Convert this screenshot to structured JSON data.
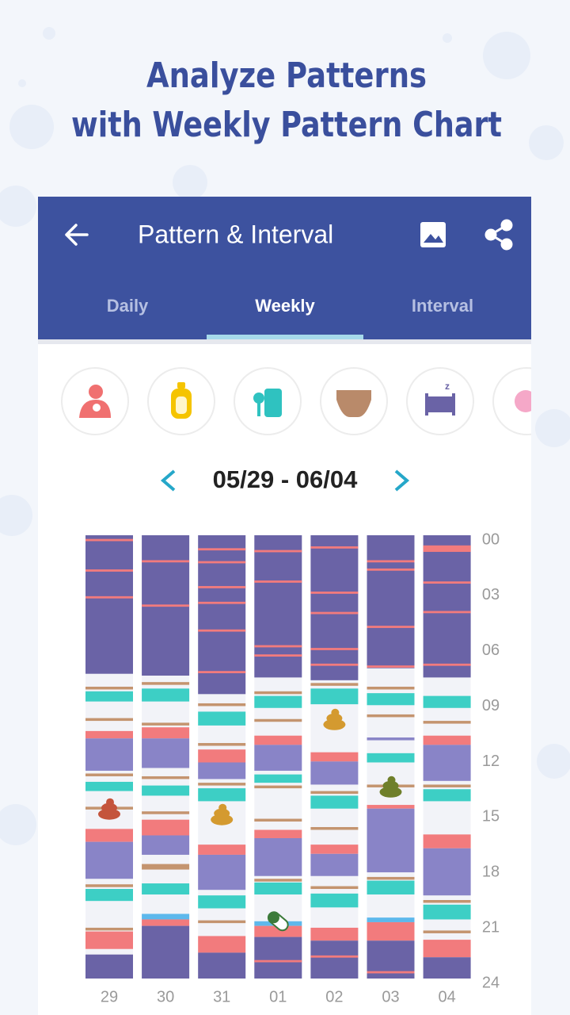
{
  "header": {
    "title_lines": [
      "Analyze Patterns",
      "with Weekly Pattern Chart"
    ]
  },
  "app_bar": {
    "title": "Pattern & Interval",
    "tabs": [
      "Daily",
      "Weekly",
      "Interval"
    ],
    "active_tab": 1
  },
  "date_range": "05/29 - 06/04",
  "chart": {
    "ylim": [
      0,
      24
    ],
    "hour_ticks": [
      {
        "value": 0,
        "label": "00"
      },
      {
        "value": 3,
        "label": "03"
      },
      {
        "value": 6,
        "label": "06"
      },
      {
        "value": 9,
        "label": "09"
      },
      {
        "value": 12,
        "label": "12"
      },
      {
        "value": 15,
        "label": "15"
      },
      {
        "value": 18,
        "label": "18"
      },
      {
        "value": 21,
        "label": "21"
      },
      {
        "value": 24,
        "label": "24"
      }
    ],
    "days": [
      {
        "label": "29",
        "poop": [
          [
            14.8,
            "#c4543c"
          ]
        ],
        "segments": [
          [
            0,
            7.5,
            "#6a63a6"
          ],
          [
            0.2,
            0.32,
            "#f27b7d"
          ],
          [
            1.85,
            1.97,
            "#f27b7d"
          ],
          [
            3.3,
            3.42,
            "#f27b7d"
          ],
          [
            8.2,
            8.35,
            "#c4946f"
          ],
          [
            8.45,
            9.0,
            "#3dcfc5"
          ],
          [
            9.9,
            10.05,
            "#c4946f"
          ],
          [
            10.6,
            11.0,
            "#f27b7d"
          ],
          [
            11.0,
            12.75,
            "#8984c7"
          ],
          [
            12.9,
            13.05,
            "#c4946f"
          ],
          [
            13.35,
            13.85,
            "#3dcfc5"
          ],
          [
            14.7,
            14.85,
            "#c4946f"
          ],
          [
            15.9,
            16.6,
            "#f27b7d"
          ],
          [
            16.6,
            18.6,
            "#8984c7"
          ],
          [
            18.9,
            19.05,
            "#c4946f"
          ],
          [
            19.15,
            19.8,
            "#3dcfc5"
          ],
          [
            21.25,
            21.4,
            "#c4946f"
          ],
          [
            21.45,
            22.4,
            "#f27b7d"
          ],
          [
            22.7,
            24,
            "#6a63a6"
          ]
        ]
      },
      {
        "label": "30",
        "poop": [],
        "segments": [
          [
            0,
            7.6,
            "#6a63a6"
          ],
          [
            1.35,
            1.47,
            "#f27b7d"
          ],
          [
            3.75,
            3.87,
            "#f27b7d"
          ],
          [
            7.95,
            8.1,
            "#c4946f"
          ],
          [
            8.3,
            9.0,
            "#3dcfc5"
          ],
          [
            10.15,
            10.3,
            "#c4946f"
          ],
          [
            10.4,
            11.0,
            "#f27b7d"
          ],
          [
            11.0,
            12.6,
            "#8984c7"
          ],
          [
            13.05,
            13.2,
            "#c4946f"
          ],
          [
            13.55,
            14.1,
            "#3dcfc5"
          ],
          [
            14.95,
            15.1,
            "#c4946f"
          ],
          [
            15.4,
            16.25,
            "#f27b7d"
          ],
          [
            16.25,
            17.3,
            "#8984c7"
          ],
          [
            17.8,
            18.1,
            "#c4946f"
          ],
          [
            18.85,
            19.45,
            "#3dcfc5"
          ],
          [
            20.5,
            20.8,
            "#5db8ec"
          ],
          [
            20.8,
            21.15,
            "#f27b7d"
          ],
          [
            21.15,
            24,
            "#6a63a6"
          ]
        ]
      },
      {
        "label": "31",
        "poop": [
          [
            15.1,
            "#d49a30"
          ]
        ],
        "segments": [
          [
            0,
            8.6,
            "#6a63a6"
          ],
          [
            0.7,
            0.82,
            "#f27b7d"
          ],
          [
            1.4,
            1.52,
            "#f27b7d"
          ],
          [
            2.75,
            2.87,
            "#f27b7d"
          ],
          [
            3.6,
            3.72,
            "#f27b7d"
          ],
          [
            5.1,
            5.22,
            "#f27b7d"
          ],
          [
            7.35,
            7.47,
            "#f27b7d"
          ],
          [
            9.1,
            9.25,
            "#c4946f"
          ],
          [
            9.55,
            10.3,
            "#3dcfc5"
          ],
          [
            11.25,
            11.4,
            "#c4946f"
          ],
          [
            11.6,
            12.3,
            "#f27b7d"
          ],
          [
            12.3,
            13.2,
            "#8984c7"
          ],
          [
            13.4,
            13.55,
            "#c4946f"
          ],
          [
            13.7,
            14.4,
            "#3dcfc5"
          ],
          [
            16.75,
            17.3,
            "#f27b7d"
          ],
          [
            17.3,
            19.2,
            "#8984c7"
          ],
          [
            19.5,
            20.2,
            "#3dcfc5"
          ],
          [
            20.85,
            21.0,
            "#c4946f"
          ],
          [
            21.7,
            22.6,
            "#f27b7d"
          ],
          [
            22.6,
            24,
            "#6a63a6"
          ]
        ]
      },
      {
        "label": "01",
        "poop": [],
        "pill": 20.9,
        "segments": [
          [
            0,
            7.7,
            "#6a63a6"
          ],
          [
            0.8,
            0.92,
            "#f27b7d"
          ],
          [
            2.45,
            2.57,
            "#f27b7d"
          ],
          [
            5.95,
            6.07,
            "#f27b7d"
          ],
          [
            6.45,
            6.57,
            "#f27b7d"
          ],
          [
            8.45,
            8.6,
            "#c4946f"
          ],
          [
            8.7,
            9.35,
            "#3dcfc5"
          ],
          [
            9.95,
            10.1,
            "#c4946f"
          ],
          [
            10.85,
            11.35,
            "#f27b7d"
          ],
          [
            11.35,
            12.75,
            "#8984c7"
          ],
          [
            12.95,
            13.4,
            "#3dcfc5"
          ],
          [
            13.55,
            13.7,
            "#c4946f"
          ],
          [
            15.35,
            15.5,
            "#c4946f"
          ],
          [
            15.95,
            16.4,
            "#f27b7d"
          ],
          [
            16.4,
            18.45,
            "#8984c7"
          ],
          [
            18.6,
            18.75,
            "#c4946f"
          ],
          [
            18.8,
            19.45,
            "#3dcfc5"
          ],
          [
            20.9,
            21.15,
            "#5db8ec"
          ],
          [
            21.15,
            21.75,
            "#f27b7d"
          ],
          [
            21.75,
            24,
            "#6a63a6"
          ],
          [
            23.0,
            23.12,
            "#f27b7d"
          ]
        ]
      },
      {
        "label": "02",
        "poop": [
          [
            9.95,
            "#d49a30"
          ]
        ],
        "segments": [
          [
            0,
            7.85,
            "#6a63a6"
          ],
          [
            0.6,
            0.72,
            "#f27b7d"
          ],
          [
            3.05,
            3.17,
            "#f27b7d"
          ],
          [
            4.15,
            4.27,
            "#f27b7d"
          ],
          [
            6.1,
            6.22,
            "#f27b7d"
          ],
          [
            6.95,
            7.07,
            "#f27b7d"
          ],
          [
            8.0,
            8.15,
            "#c4946f"
          ],
          [
            8.3,
            9.15,
            "#3dcfc5"
          ],
          [
            11.75,
            12.25,
            "#f27b7d"
          ],
          [
            12.25,
            13.5,
            "#8984c7"
          ],
          [
            13.85,
            14.0,
            "#c4946f"
          ],
          [
            14.1,
            14.8,
            "#3dcfc5"
          ],
          [
            15.8,
            15.95,
            "#c4946f"
          ],
          [
            16.75,
            17.25,
            "#f27b7d"
          ],
          [
            17.25,
            18.45,
            "#8984c7"
          ],
          [
            19.0,
            19.15,
            "#c4946f"
          ],
          [
            19.4,
            20.15,
            "#3dcfc5"
          ],
          [
            21.25,
            21.95,
            "#f27b7d"
          ],
          [
            21.95,
            24,
            "#6a63a6"
          ],
          [
            22.75,
            22.87,
            "#f27b7d"
          ]
        ]
      },
      {
        "label": "03",
        "poop": [
          [
            13.6,
            "#6f7f2a"
          ]
        ],
        "segments": [
          [
            0,
            7.2,
            "#6a63a6"
          ],
          [
            1.35,
            1.47,
            "#f27b7d"
          ],
          [
            1.8,
            1.92,
            "#f27b7d"
          ],
          [
            4.9,
            5.02,
            "#f27b7d"
          ],
          [
            7.05,
            7.17,
            "#f27b7d"
          ],
          [
            8.2,
            8.35,
            "#c4946f"
          ],
          [
            8.55,
            9.2,
            "#3dcfc5"
          ],
          [
            9.7,
            9.85,
            "#c4946f"
          ],
          [
            10.95,
            11.1,
            "#8984c7"
          ],
          [
            11.8,
            12.3,
            "#3dcfc5"
          ],
          [
            13.5,
            13.65,
            "#c4946f"
          ],
          [
            14.6,
            14.8,
            "#f27b7d"
          ],
          [
            14.8,
            18.25,
            "#8984c7"
          ],
          [
            18.5,
            18.65,
            "#c4946f"
          ],
          [
            18.7,
            19.45,
            "#3dcfc5"
          ],
          [
            20.7,
            20.95,
            "#5db8ec"
          ],
          [
            20.95,
            21.95,
            "#f27b7d"
          ],
          [
            21.95,
            24,
            "#6a63a6"
          ],
          [
            23.6,
            23.72,
            "#f27b7d"
          ]
        ]
      },
      {
        "label": "04",
        "poop": [],
        "segments": [
          [
            0,
            7.7,
            "#6a63a6"
          ],
          [
            0.55,
            0.9,
            "#f27b7d"
          ],
          [
            2.5,
            2.62,
            "#f27b7d"
          ],
          [
            4.1,
            4.22,
            "#f27b7d"
          ],
          [
            6.95,
            7.07,
            "#f27b7d"
          ],
          [
            8.7,
            9.35,
            "#3dcfc5"
          ],
          [
            10.05,
            10.2,
            "#c4946f"
          ],
          [
            10.85,
            11.35,
            "#f27b7d"
          ],
          [
            11.35,
            13.3,
            "#8984c7"
          ],
          [
            13.5,
            13.65,
            "#c4946f"
          ],
          [
            13.75,
            14.4,
            "#3dcfc5"
          ],
          [
            16.2,
            16.95,
            "#f27b7d"
          ],
          [
            16.95,
            19.5,
            "#8984c7"
          ],
          [
            19.75,
            19.9,
            "#c4946f"
          ],
          [
            20.0,
            20.8,
            "#3dcfc5"
          ],
          [
            21.4,
            21.55,
            "#c4946f"
          ],
          [
            21.9,
            22.85,
            "#f27b7d"
          ],
          [
            22.85,
            24,
            "#6a63a6"
          ]
        ]
      }
    ]
  }
}
